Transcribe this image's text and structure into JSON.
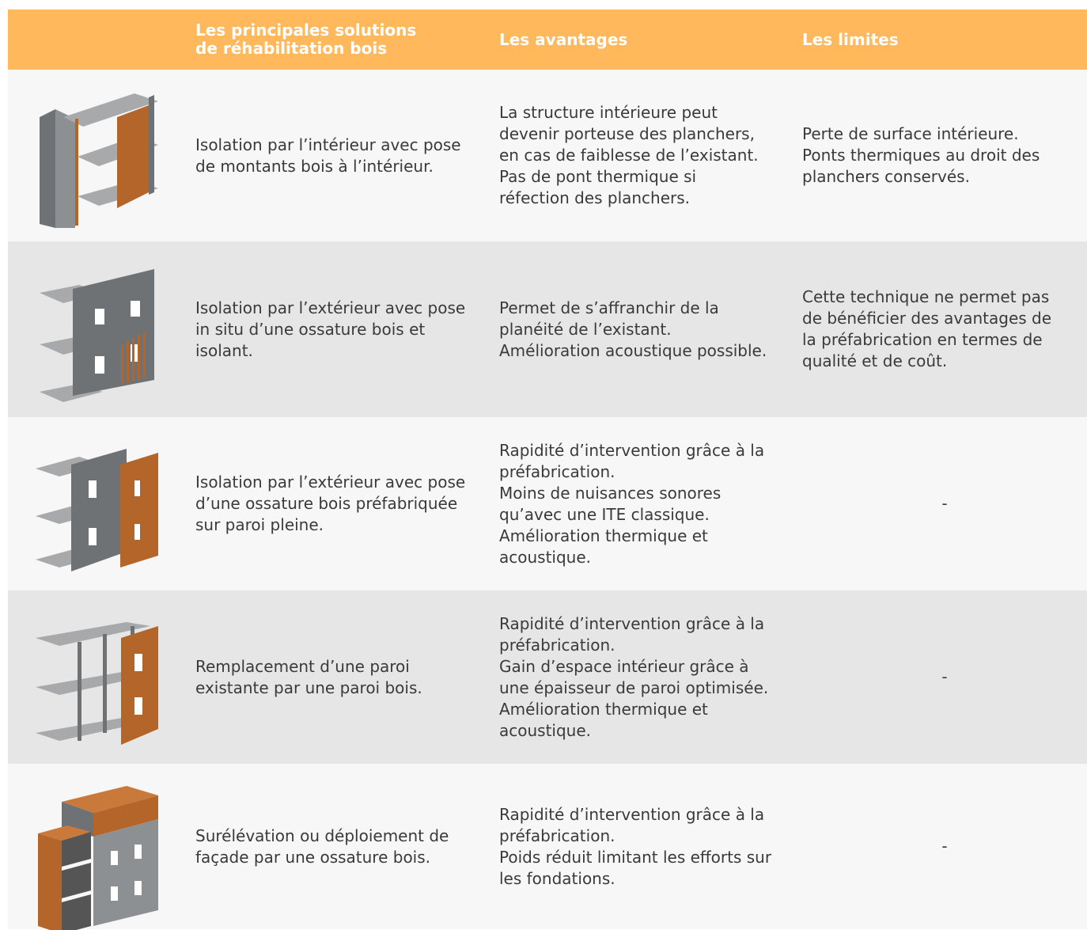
{
  "table": {
    "header": [
      [
        "Les principales solutions",
        "de réhabilitation bois"
      ],
      [
        "Les avantages"
      ],
      [
        "Les limites"
      ]
    ],
    "rows": [
      {
        "solution": [
          "Isolation par l’intérieur avec pose",
          "de montants bois à l’intérieur."
        ],
        "advantages": [
          "La structure intérieure peut",
          "devenir porteuse des planchers,",
          "en cas de faiblesse de l’existant.",
          "Pas de pont thermique si",
          "réfection des planchers."
        ],
        "limits": [
          "Perte de surface intérieure.",
          "Ponts thermiques au droit des",
          "planchers conservés."
        ]
      },
      {
        "solution": [
          "Isolation par l’extérieur avec pose",
          "in situ d’une ossature bois et",
          "isolant."
        ],
        "advantages": [
          "Permet de s’affranchir de la",
          "planéité de l’existant.",
          "Amélioration acoustique possible."
        ],
        "limits": [
          "Cette technique ne permet pas",
          "de bénéficier des avantages de",
          "la préfabrication en termes de",
          "qualité et de coût."
        ]
      },
      {
        "solution": [
          "Isolation par l’extérieur avec pose",
          "d’une ossature bois préfabriquée",
          "sur paroi pleine."
        ],
        "advantages": [
          "Rapidité d’intervention grâce à la",
          "préfabrication.",
          "Moins de nuisances sonores",
          "qu’avec une ITE classique.",
          "Amélioration thermique et",
          "acoustique."
        ],
        "limits": [
          "-"
        ]
      },
      {
        "solution": [
          "Remplacement d’une paroi",
          "existante par une paroi bois."
        ],
        "advantages": [
          "Rapidité d’intervention grâce à la",
          "préfabrication.",
          "Gain d’espace intérieur grâce à",
          "une épaisseur de paroi optimisée.",
          "Amélioration thermique et",
          "acoustique."
        ],
        "limits": [
          "-"
        ]
      },
      {
        "solution": [
          "Surélévation ou déploiement de",
          "façade par une ossature bois."
        ],
        "advantages": [
          "Rapidité d’intervention grâce à la",
          "préfabrication.",
          "Poids réduit limitant les efforts sur",
          "les fondations."
        ],
        "limits": [
          "-"
        ]
      }
    ]
  }
}
